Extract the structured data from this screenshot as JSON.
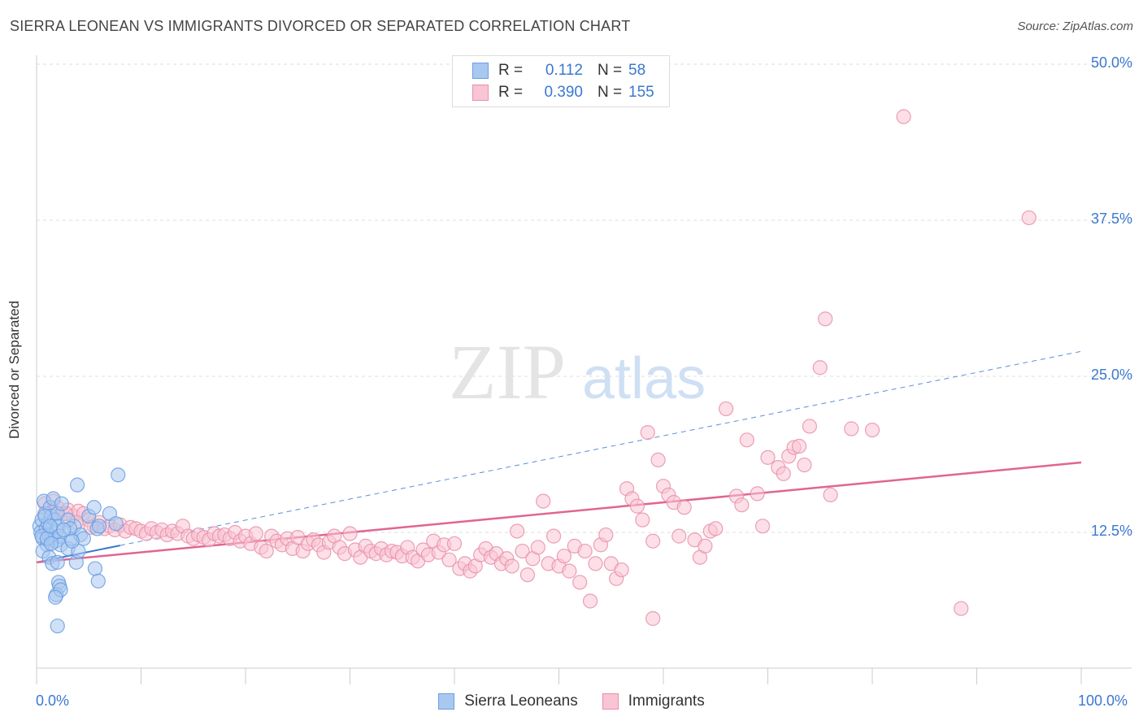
{
  "title": "SIERRA LEONEAN VS IMMIGRANTS DIVORCED OR SEPARATED CORRELATION CHART",
  "source": "Source: ZipAtlas.com",
  "watermark": {
    "zip": "ZIP",
    "atlas": "atlas"
  },
  "legend_top": {
    "rows": [
      {
        "r_label": "R =",
        "r_value": "0.112",
        "n_label": "N =",
        "n_value": "58",
        "color": "#a9c8f0",
        "border": "#6a9ee0"
      },
      {
        "r_label": "R =",
        "r_value": "0.390",
        "n_label": "N =",
        "n_value": "155",
        "color": "#f9c4d4",
        "border": "#e88fab"
      }
    ]
  },
  "legend_bottom": [
    {
      "label": "Sierra Leoneans",
      "color": "#a9c8f0",
      "border": "#6a9ee0"
    },
    {
      "label": "Immigrants",
      "color": "#f9c4d4",
      "border": "#e88fab"
    }
  ],
  "chart_data": {
    "type": "scatter",
    "title": "SIERRA LEONEAN VS IMMIGRANTS DIVORCED OR SEPARATED CORRELATION CHART",
    "ylabel": "Divorced or Separated",
    "xlabel": "",
    "xlim": [
      0,
      100
    ],
    "ylim": [
      0,
      52
    ],
    "x_ticks": [
      "0.0%",
      "100.0%"
    ],
    "y_ticks": [
      {
        "value": 12.5,
        "label": "12.5%"
      },
      {
        "value": 25.0,
        "label": "25.0%"
      },
      {
        "value": 37.5,
        "label": "37.5%"
      },
      {
        "value": 50.0,
        "label": "50.0%"
      }
    ],
    "grid": true,
    "series": [
      {
        "name": "Sierra Leoneans",
        "color": "#6a9ee0",
        "fill": "#a9c8f0",
        "trend": {
          "x": [
            0,
            100
          ],
          "y": [
            10.1,
            27.0
          ],
          "style": "dashed",
          "solid_until": 8
        },
        "points": [
          [
            0.3,
            13.0
          ],
          [
            0.4,
            12.5
          ],
          [
            0.5,
            13.5
          ],
          [
            0.6,
            12.0
          ],
          [
            0.7,
            15.0
          ],
          [
            0.8,
            14.0
          ],
          [
            0.9,
            12.8
          ],
          [
            1.0,
            11.5
          ],
          [
            0.6,
            11.0
          ],
          [
            1.1,
            13.2
          ],
          [
            1.2,
            12.3
          ],
          [
            1.3,
            14.5
          ],
          [
            1.4,
            13.8
          ],
          [
            1.5,
            12.0
          ],
          [
            1.6,
            15.2
          ],
          [
            1.7,
            13.5
          ],
          [
            1.8,
            11.8
          ],
          [
            1.9,
            12.6
          ],
          [
            2.0,
            14.0
          ],
          [
            2.1,
            13.0
          ],
          [
            2.2,
            12.2
          ],
          [
            2.3,
            11.5
          ],
          [
            2.4,
            14.8
          ],
          [
            1.2,
            10.5
          ],
          [
            1.5,
            10.0
          ],
          [
            2.0,
            10.1
          ],
          [
            2.1,
            8.5
          ],
          [
            2.2,
            8.2
          ],
          [
            1.9,
            7.5
          ],
          [
            2.3,
            7.9
          ],
          [
            1.8,
            7.3
          ],
          [
            2.0,
            5.0
          ],
          [
            3.0,
            11.2
          ],
          [
            3.3,
            12.0
          ],
          [
            3.6,
            13.0
          ],
          [
            3.8,
            10.1
          ],
          [
            4.0,
            11.0
          ],
          [
            4.2,
            12.3
          ],
          [
            4.5,
            12.0
          ],
          [
            3.0,
            13.5
          ],
          [
            3.2,
            12.8
          ],
          [
            3.9,
            16.3
          ],
          [
            5.0,
            13.8
          ],
          [
            5.5,
            14.5
          ],
          [
            5.8,
            12.8
          ],
          [
            6.0,
            13.0
          ],
          [
            5.6,
            9.6
          ],
          [
            5.9,
            8.6
          ],
          [
            7.0,
            14.0
          ],
          [
            7.6,
            13.2
          ],
          [
            7.8,
            17.1
          ],
          [
            0.5,
            12.2
          ],
          [
            1.0,
            12.0
          ],
          [
            1.4,
            11.6
          ],
          [
            2.6,
            12.7
          ],
          [
            3.4,
            11.8
          ],
          [
            0.8,
            13.8
          ],
          [
            1.3,
            13.0
          ]
        ]
      },
      {
        "name": "Immigrants",
        "color": "#e88fab",
        "fill": "#f9c4d4",
        "trend": {
          "x": [
            0,
            100
          ],
          "y": [
            10.1,
            18.1
          ],
          "style": "solid"
        },
        "points": [
          [
            0.8,
            14.8
          ],
          [
            1.2,
            14.0
          ],
          [
            1.6,
            15.0
          ],
          [
            2.0,
            14.5
          ],
          [
            2.5,
            14.0
          ],
          [
            3.0,
            14.3
          ],
          [
            3.5,
            13.8
          ],
          [
            4.0,
            14.2
          ],
          [
            4.5,
            14.0
          ],
          [
            5.0,
            13.5
          ],
          [
            5.5,
            13.0
          ],
          [
            6.0,
            13.3
          ],
          [
            6.5,
            12.8
          ],
          [
            7.0,
            13.0
          ],
          [
            7.5,
            12.7
          ],
          [
            8.0,
            13.1
          ],
          [
            8.5,
            12.6
          ],
          [
            9.0,
            12.9
          ],
          [
            9.5,
            12.8
          ],
          [
            10.0,
            12.6
          ],
          [
            10.5,
            12.4
          ],
          [
            11.0,
            12.8
          ],
          [
            11.5,
            12.5
          ],
          [
            12.0,
            12.7
          ],
          [
            12.5,
            12.3
          ],
          [
            13.0,
            12.6
          ],
          [
            13.5,
            12.4
          ],
          [
            14.0,
            13.0
          ],
          [
            14.5,
            12.2
          ],
          [
            15.0,
            12.0
          ],
          [
            15.5,
            12.3
          ],
          [
            16.0,
            12.1
          ],
          [
            16.5,
            11.9
          ],
          [
            17.0,
            12.4
          ],
          [
            17.5,
            12.2
          ],
          [
            18.0,
            12.3
          ],
          [
            18.5,
            12.0
          ],
          [
            19.0,
            12.5
          ],
          [
            19.5,
            11.8
          ],
          [
            20.0,
            12.2
          ],
          [
            20.5,
            11.6
          ],
          [
            21.0,
            12.4
          ],
          [
            21.5,
            11.3
          ],
          [
            22.0,
            11.0
          ],
          [
            22.5,
            12.2
          ],
          [
            23.0,
            11.8
          ],
          [
            23.5,
            11.5
          ],
          [
            24.0,
            12.0
          ],
          [
            24.5,
            11.2
          ],
          [
            25.0,
            12.1
          ],
          [
            25.5,
            11.0
          ],
          [
            26.0,
            11.6
          ],
          [
            26.5,
            11.9
          ],
          [
            27.0,
            11.5
          ],
          [
            27.5,
            10.9
          ],
          [
            28.0,
            11.7
          ],
          [
            28.5,
            12.2
          ],
          [
            29.0,
            11.3
          ],
          [
            29.5,
            10.8
          ],
          [
            30.0,
            12.4
          ],
          [
            30.5,
            11.1
          ],
          [
            31.0,
            10.5
          ],
          [
            31.5,
            11.4
          ],
          [
            32.0,
            11.0
          ],
          [
            32.5,
            10.8
          ],
          [
            33.0,
            11.2
          ],
          [
            33.5,
            10.7
          ],
          [
            34.0,
            11.0
          ],
          [
            34.5,
            10.9
          ],
          [
            35.0,
            10.6
          ],
          [
            35.5,
            11.3
          ],
          [
            36.0,
            10.5
          ],
          [
            36.5,
            10.2
          ],
          [
            37.0,
            11.1
          ],
          [
            37.5,
            10.7
          ],
          [
            38.0,
            11.8
          ],
          [
            38.5,
            10.9
          ],
          [
            39.0,
            11.5
          ],
          [
            39.5,
            10.3
          ],
          [
            40.0,
            11.6
          ],
          [
            40.5,
            9.6
          ],
          [
            41.0,
            10.0
          ],
          [
            41.5,
            9.4
          ],
          [
            42.0,
            9.8
          ],
          [
            42.5,
            10.7
          ],
          [
            43.0,
            11.2
          ],
          [
            43.5,
            10.5
          ],
          [
            44.0,
            10.8
          ],
          [
            44.5,
            10.0
          ],
          [
            45.0,
            10.4
          ],
          [
            45.5,
            9.8
          ],
          [
            46.0,
            12.6
          ],
          [
            46.5,
            11.0
          ],
          [
            47.0,
            9.1
          ],
          [
            47.5,
            10.4
          ],
          [
            48.0,
            11.3
          ],
          [
            48.5,
            15.0
          ],
          [
            49.0,
            10.0
          ],
          [
            49.5,
            12.2
          ],
          [
            50.0,
            9.8
          ],
          [
            50.5,
            10.6
          ],
          [
            51.0,
            9.4
          ],
          [
            51.5,
            11.4
          ],
          [
            52.0,
            8.5
          ],
          [
            52.5,
            11.0
          ],
          [
            53.0,
            7.0
          ],
          [
            53.5,
            10.0
          ],
          [
            54.0,
            11.5
          ],
          [
            54.5,
            12.3
          ],
          [
            55.0,
            10.0
          ],
          [
            55.5,
            8.8
          ],
          [
            56.0,
            9.5
          ],
          [
            56.5,
            16.0
          ],
          [
            57.0,
            15.2
          ],
          [
            57.5,
            14.6
          ],
          [
            58.0,
            13.5
          ],
          [
            58.5,
            20.5
          ],
          [
            59.0,
            11.8
          ],
          [
            59.5,
            18.3
          ],
          [
            60.0,
            16.2
          ],
          [
            60.5,
            15.5
          ],
          [
            61.0,
            14.9
          ],
          [
            61.5,
            12.2
          ],
          [
            62.0,
            14.5
          ],
          [
            63.0,
            11.9
          ],
          [
            63.5,
            10.5
          ],
          [
            64.0,
            11.4
          ],
          [
            64.5,
            12.6
          ],
          [
            65.0,
            12.8
          ],
          [
            66.0,
            22.4
          ],
          [
            67.0,
            15.4
          ],
          [
            67.5,
            14.7
          ],
          [
            68.0,
            19.9
          ],
          [
            69.0,
            15.6
          ],
          [
            69.5,
            13.0
          ],
          [
            70.0,
            18.5
          ],
          [
            71.0,
            17.7
          ],
          [
            71.5,
            17.2
          ],
          [
            72.0,
            18.6
          ],
          [
            72.5,
            19.3
          ],
          [
            73.0,
            19.4
          ],
          [
            73.5,
            17.9
          ],
          [
            74.0,
            21.0
          ],
          [
            75.0,
            25.7
          ],
          [
            75.5,
            29.6
          ],
          [
            76.0,
            15.5
          ],
          [
            78.0,
            20.8
          ],
          [
            80.0,
            20.7
          ],
          [
            59.0,
            5.6
          ],
          [
            83.0,
            45.8
          ],
          [
            88.5,
            6.4
          ],
          [
            95.0,
            37.7
          ],
          [
            2.8,
            14.0
          ],
          [
            3.8,
            13.3
          ],
          [
            5.2,
            12.9
          ]
        ]
      }
    ]
  }
}
